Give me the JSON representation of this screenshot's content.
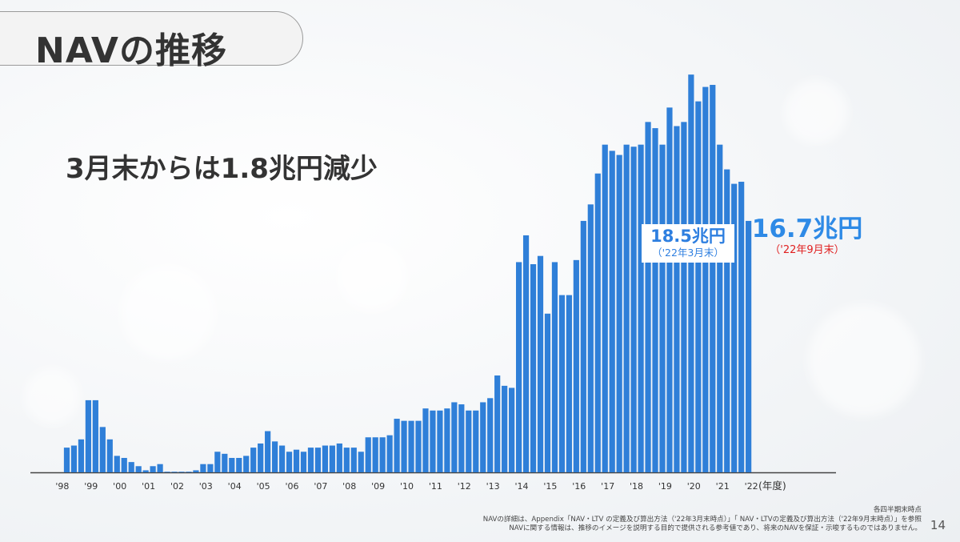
{
  "title": "NAVの推移",
  "subtitle": "3月末からは1.8兆円減少",
  "callout_march": {
    "value": "18.5兆円",
    "date": "（'22年3月末）"
  },
  "callout_sept": {
    "value": "16.7兆円",
    "date": "（'22年9月末）"
  },
  "footnotes": {
    "line1": "各四半期末時点",
    "line2": "NAVの詳細は、Appendix「NAV・LTV の定義及び算出方法（'22年3月末時点）」「 NAV・LTVの定義及び算出方法（'22年9月末時点）」を参照",
    "line3": "NAVに関する情報は、推移のイメージを説明する目的で提供される参考値であり、将来のNAVを保証・示唆するものではありません。"
  },
  "page_number": "14",
  "colors": {
    "bar": "#2f7fd8",
    "accent": "#2e8ae6",
    "red": "#e02020",
    "text": "#333333"
  },
  "chart_data": {
    "type": "bar",
    "title": "",
    "xlabel": "(年度)",
    "ylabel": "",
    "x_tick_labels": [
      "'98",
      "'99",
      "'00",
      "'01",
      "'02",
      "'03",
      "'04",
      "'05",
      "'06",
      "'07",
      "'08",
      "'09",
      "'10",
      "'11",
      "'12",
      "'13",
      "'14",
      "'15",
      "'16",
      "'17",
      "'18",
      "'19",
      "'20",
      "'21",
      "'22"
    ],
    "ylim": [
      0,
      19.5
    ],
    "y_axis_shown": false,
    "values": [
      null,
      null,
      null,
      null,
      1.2,
      1.3,
      1.6,
      3.5,
      3.5,
      2.2,
      1.6,
      0.8,
      0.7,
      0.5,
      0.3,
      0.1,
      0.3,
      0.4,
      0.0,
      0.0,
      0.0,
      0.0,
      0.1,
      0.4,
      0.4,
      1.0,
      0.9,
      0.7,
      0.7,
      0.8,
      1.2,
      1.4,
      2.0,
      1.5,
      1.3,
      1.0,
      1.1,
      1.0,
      1.2,
      1.2,
      1.3,
      1.3,
      1.4,
      1.2,
      1.2,
      1.0,
      1.7,
      1.7,
      1.7,
      1.8,
      2.6,
      2.5,
      2.5,
      2.5,
      3.1,
      3.0,
      3.0,
      3.1,
      3.4,
      3.3,
      3.0,
      3.0,
      3.4,
      3.6,
      4.7,
      4.2,
      4.1,
      10.2,
      11.5,
      10.1,
      10.5,
      7.7,
      10.2,
      8.6,
      8.6,
      10.3,
      12.2,
      13.0,
      14.5,
      15.9,
      15.6,
      15.4,
      15.9,
      15.8,
      15.9,
      17.0,
      16.7,
      15.9,
      17.7,
      16.8,
      17.0,
      19.3,
      18.0,
      18.7,
      18.8,
      15.9,
      14.7,
      14.0,
      14.1,
      12.2,
      null,
      null,
      null
    ]
  }
}
